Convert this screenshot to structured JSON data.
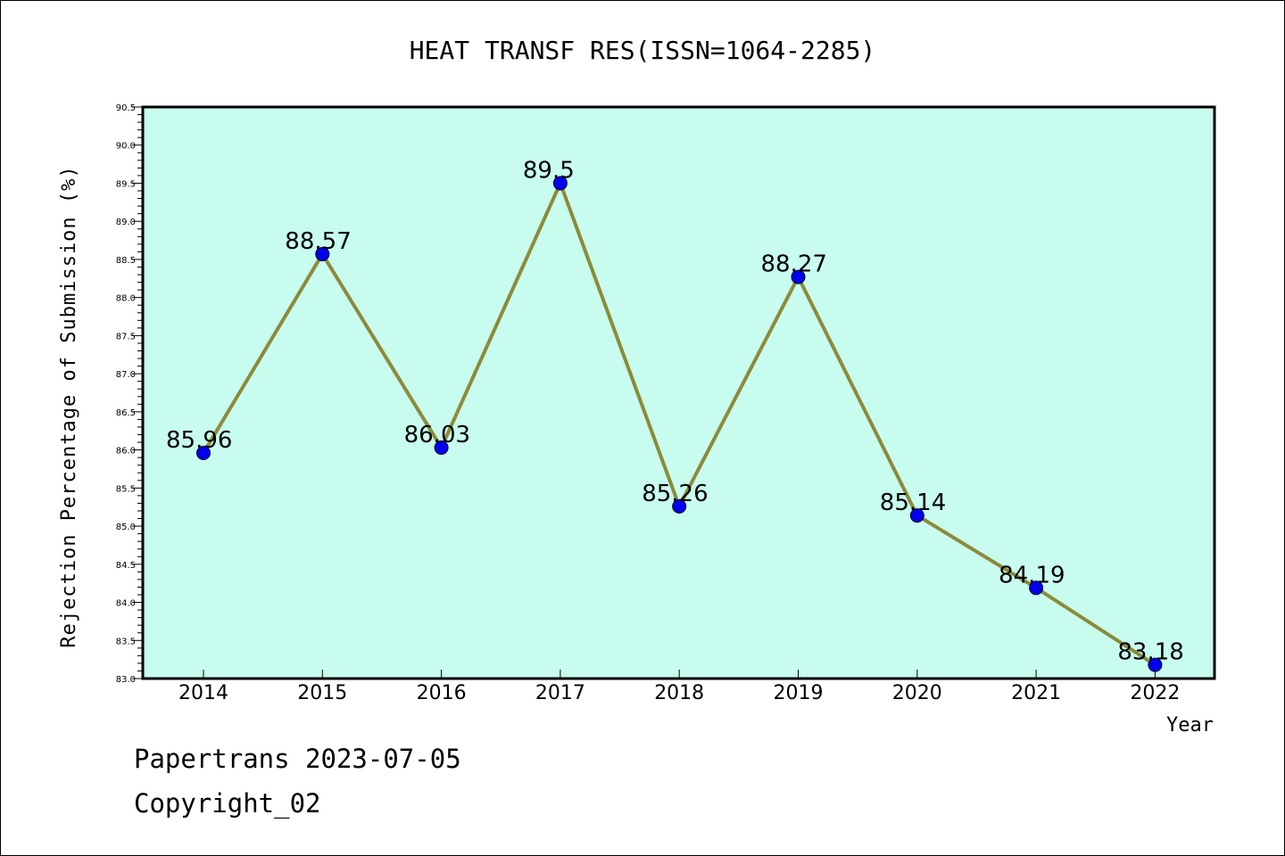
{
  "chart_data": {
    "type": "line",
    "title": "HEAT TRANSF RES(ISSN=1064-2285)",
    "xlabel": "Year",
    "ylabel": "Rejection Percentage of Submission (%)",
    "categories": [
      "2014",
      "2015",
      "2016",
      "2017",
      "2018",
      "2019",
      "2020",
      "2021",
      "2022"
    ],
    "series": [
      {
        "values": [
          85.96,
          88.57,
          86.03,
          89.5,
          85.26,
          88.27,
          85.14,
          84.19,
          83.18
        ],
        "labels": [
          "85.96",
          "88.57",
          "86.03",
          "89.5",
          "85.26",
          "88.27",
          "85.14",
          "84.19",
          "83.18"
        ]
      }
    ],
    "ylim": [
      83.0,
      90.5
    ],
    "yticks": [
      "83.0",
      "83.5",
      "84.0",
      "84.5",
      "85.0",
      "85.5",
      "86.0",
      "86.5",
      "87.0",
      "87.5",
      "88.0",
      "88.5",
      "89.0",
      "89.5",
      "90.0",
      "90.5"
    ],
    "grid": false,
    "colors": {
      "plot_background": "#c8fcee",
      "line": "#8b8b3a",
      "marker": "#0000ee"
    }
  },
  "footer": {
    "line1": "Papertrans 2023-07-05",
    "line2": "Copyright_02"
  }
}
